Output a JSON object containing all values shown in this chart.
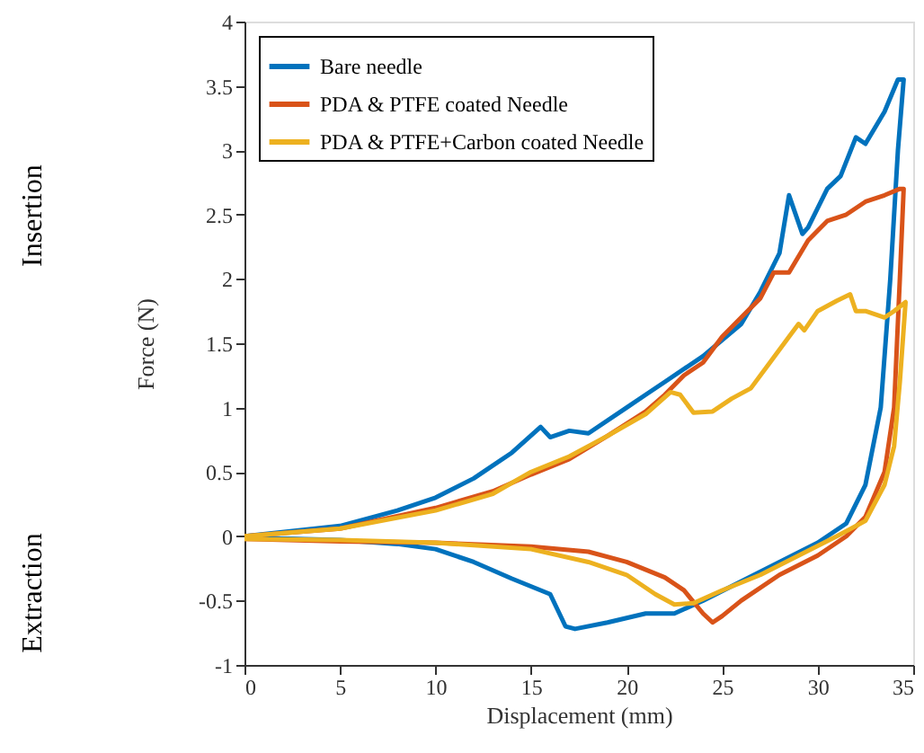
{
  "chart_data": {
    "type": "line",
    "xlabel": "Displacement (mm)",
    "ylabel": "Force (N)",
    "xlim": [
      0,
      35
    ],
    "xticks": [
      0,
      5,
      10,
      15,
      20,
      25,
      30,
      35
    ],
    "ylim": [
      -1,
      4
    ],
    "yticks": [
      -1,
      -0.5,
      0,
      0.5,
      1,
      1.5,
      2,
      2.5,
      3,
      3.5,
      4
    ],
    "grid": false,
    "legend": "top left",
    "marker": "none",
    "line_style": "solid",
    "annotations": [
      "Insertion",
      "Extraction"
    ],
    "series": [
      {
        "name": "Bare needle",
        "color": "#0072bd",
        "x": [
          0,
          5,
          8,
          10,
          12,
          14,
          15.5,
          16,
          17,
          18,
          20,
          21,
          22,
          24,
          26,
          27,
          28,
          28.5,
          29.2,
          29.5,
          30.5,
          31.2,
          32,
          32.5,
          33.5,
          34.2,
          34.5,
          34.2,
          33.8,
          33.3,
          32.5,
          31.5,
          30,
          28,
          26,
          24,
          22.5,
          21,
          19,
          17.3,
          16.8,
          16,
          14,
          12,
          10,
          8,
          5,
          0
        ],
        "values": [
          0,
          0.08,
          0.2,
          0.3,
          0.45,
          0.65,
          0.85,
          0.77,
          0.82,
          0.8,
          1.0,
          1.1,
          1.2,
          1.4,
          1.65,
          1.9,
          2.2,
          2.65,
          2.35,
          2.4,
          2.7,
          2.8,
          3.1,
          3.05,
          3.3,
          3.55,
          3.55,
          3.0,
          2.0,
          1.0,
          0.4,
          0.1,
          -0.05,
          -0.2,
          -0.35,
          -0.5,
          -0.6,
          -0.6,
          -0.67,
          -0.72,
          -0.7,
          -0.45,
          -0.33,
          -0.2,
          -0.1,
          -0.06,
          -0.03,
          -0.01
        ]
      },
      {
        "name": " PDA & PTFE coated Needle",
        "color": "#d95319",
        "x": [
          0,
          5,
          10,
          13,
          15,
          17,
          19,
          21,
          22,
          23,
          24,
          25,
          26,
          27,
          27.7,
          28.5,
          29.5,
          30.5,
          31.5,
          32.5,
          33.5,
          34.3,
          34.5,
          34.3,
          34,
          33.5,
          32.5,
          31.5,
          30,
          28,
          26,
          25,
          24.5,
          24,
          23,
          22,
          20,
          18,
          15,
          10,
          5,
          0
        ],
        "values": [
          0,
          0.06,
          0.22,
          0.35,
          0.48,
          0.6,
          0.78,
          0.97,
          1.1,
          1.25,
          1.35,
          1.55,
          1.7,
          1.85,
          2.05,
          2.05,
          2.3,
          2.45,
          2.5,
          2.6,
          2.65,
          2.7,
          2.7,
          2.0,
          1.0,
          0.5,
          0.15,
          0.0,
          -0.15,
          -0.3,
          -0.5,
          -0.62,
          -0.67,
          -0.6,
          -0.42,
          -0.32,
          -0.2,
          -0.12,
          -0.08,
          -0.05,
          -0.04,
          -0.02
        ]
      },
      {
        "name": "PDA & PTFE+Carbon coated Needle",
        "color": "#edb120",
        "x": [
          0,
          5,
          10,
          13,
          15,
          17,
          19,
          21,
          22.3,
          22.8,
          23.5,
          24.5,
          25.5,
          26.5,
          27.5,
          28.5,
          29,
          29.3,
          30,
          31,
          31.7,
          32,
          32.5,
          33.5,
          34,
          34.6,
          34.3,
          34,
          33.5,
          32.5,
          31,
          29,
          27,
          25,
          23.5,
          22.5,
          21.5,
          20,
          18,
          15,
          10,
          5,
          0
        ],
        "values": [
          0,
          0.06,
          0.2,
          0.33,
          0.5,
          0.62,
          0.78,
          0.95,
          1.12,
          1.1,
          0.96,
          0.97,
          1.07,
          1.15,
          1.35,
          1.55,
          1.65,
          1.6,
          1.75,
          1.83,
          1.88,
          1.75,
          1.75,
          1.7,
          1.75,
          1.82,
          1.2,
          0.7,
          0.4,
          0.12,
          0.0,
          -0.15,
          -0.3,
          -0.42,
          -0.52,
          -0.53,
          -0.45,
          -0.3,
          -0.2,
          -0.1,
          -0.05,
          -0.03,
          -0.02
        ]
      }
    ]
  }
}
